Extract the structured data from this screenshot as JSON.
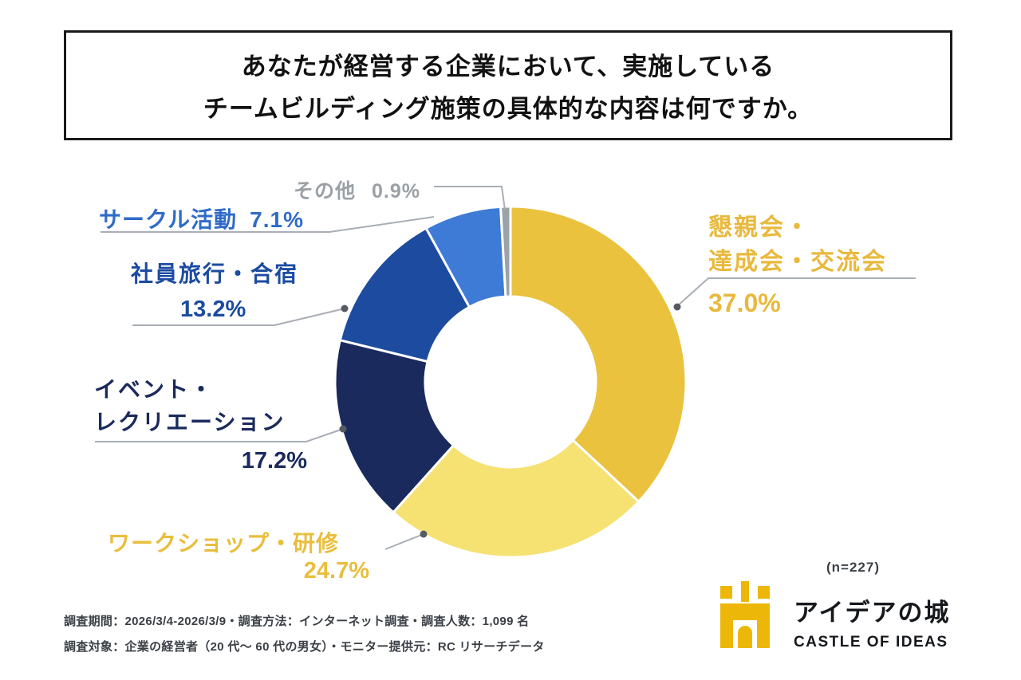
{
  "title": {
    "lines": [
      "あなたが経営する企業において、実施している",
      "チームビルディング施策の具体的な内容は何ですか。"
    ]
  },
  "chart_data": {
    "type": "pie",
    "donut": true,
    "direction": "clockwise",
    "start_angle_deg": 0,
    "title": "あなたが経営する企業において、実施しているチームビルディング施策の具体的な内容は何ですか。",
    "sample_size": "n=227",
    "segments": [
      {
        "label": "懇親会・達成会・交流会",
        "value": 37.0,
        "pct_label": "37.0%",
        "color": "#EAC23E",
        "label_color": "#E8B93C",
        "label_lines": [
          "懇親会・",
          "達成会・交流会"
        ]
      },
      {
        "label": "ワークショップ・研修",
        "value": 24.7,
        "pct_label": "24.7%",
        "color": "#F6E173",
        "label_color": "#E9BE3C",
        "label_lines": [
          "ワークショップ・研修"
        ]
      },
      {
        "label": "イベント・レクリエーション",
        "value": 17.2,
        "pct_label": "17.2%",
        "color": "#1A2A5C",
        "label_color": "#1A2A5C",
        "label_lines": [
          "イベント・",
          "レクリエーション"
        ]
      },
      {
        "label": "社員旅行・合宿",
        "value": 13.2,
        "pct_label": "13.2%",
        "color": "#1C4BA0",
        "label_color": "#1C4BA0",
        "label_lines": [
          "社員旅行・合宿"
        ]
      },
      {
        "label": "サークル活動",
        "value": 7.1,
        "pct_label": "7.1%",
        "color": "#3E7BD7",
        "label_color": "#2F6BC8",
        "label_lines": [
          "サークル活動"
        ]
      },
      {
        "label": "その他",
        "value": 0.9,
        "pct_label": "0.9%",
        "color": "#9CA2A9",
        "label_color": "#9aa0a6",
        "label_lines": [
          "その他"
        ]
      }
    ]
  },
  "annotations": {
    "sample_size": "(n=227)"
  },
  "footer": {
    "line1": "調査期間：2026/3/4-2026/3/9・調査方法：インターネット調査・調査人数：1,099 名",
    "line2": "調査対象：企業の経営者（20 代〜 60 代の男女）・モニター提供元：RC リサーチデータ"
  },
  "logo": {
    "name_jp": "アイデアの城",
    "name_en": "CASTLE OF IDEAS",
    "icon": "castle-icon",
    "icon_color": "#EDB70A"
  }
}
